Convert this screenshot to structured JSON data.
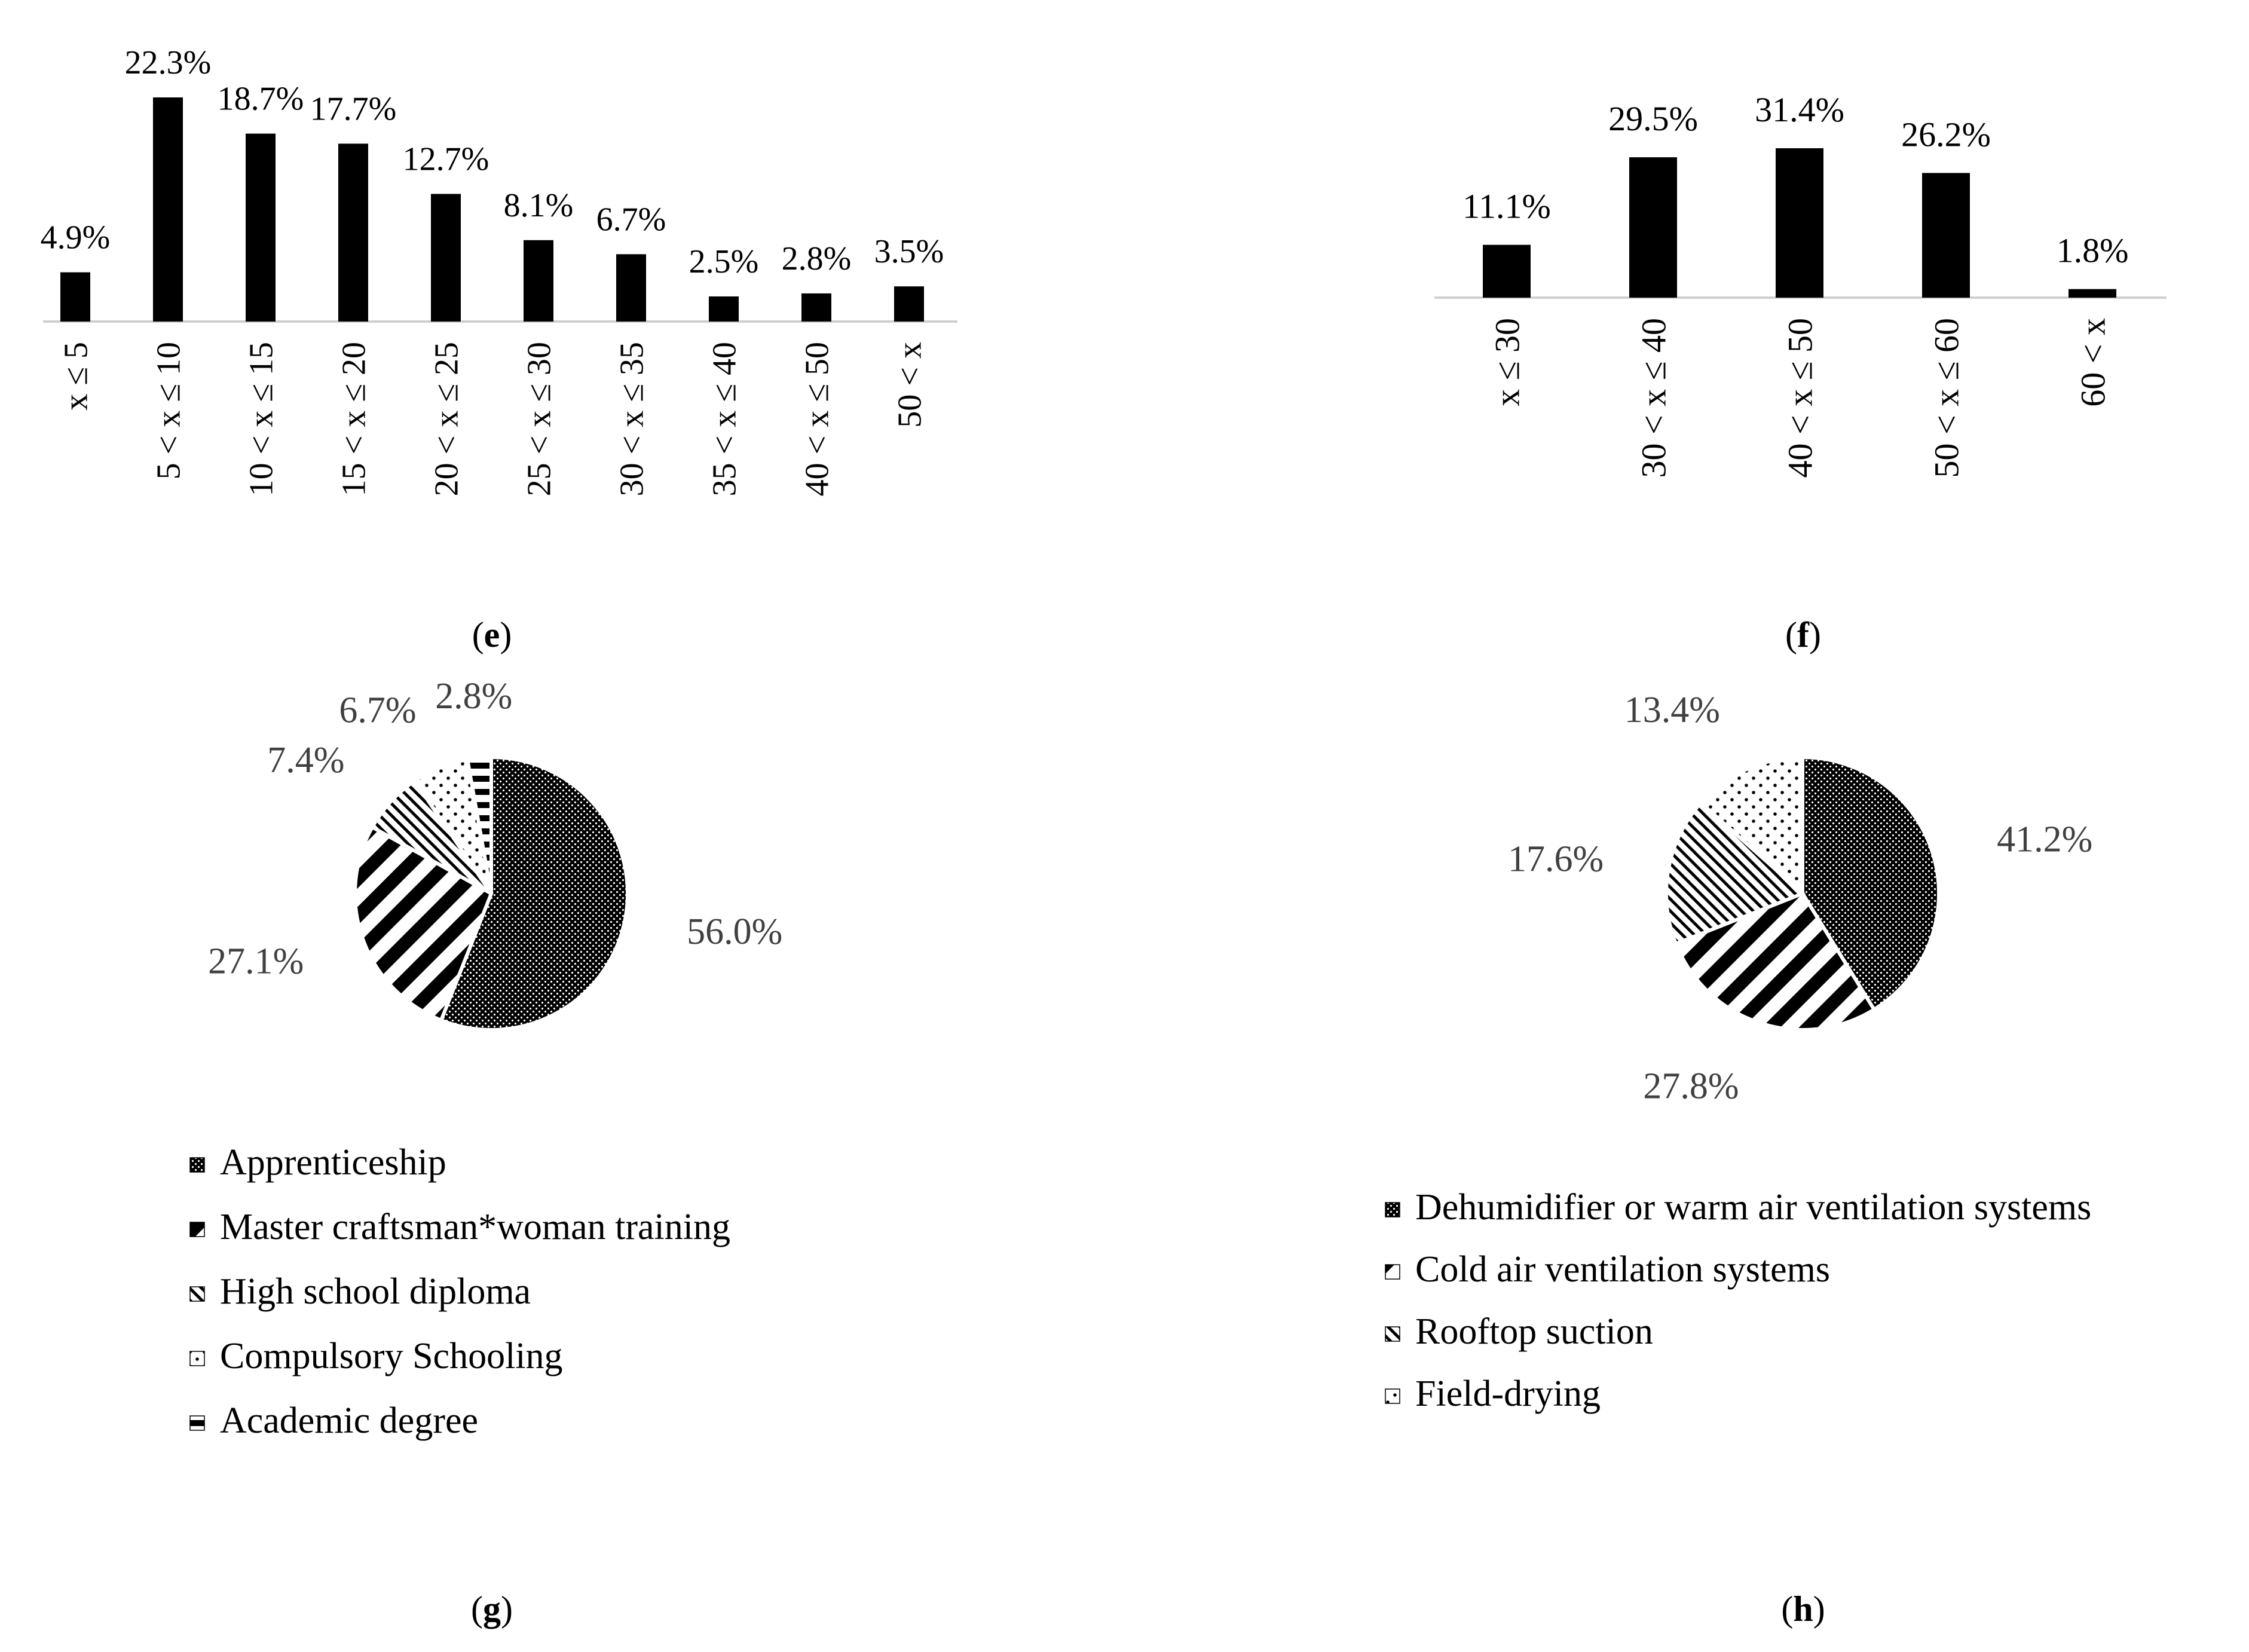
{
  "chart_data": [
    {
      "id": "e",
      "type": "bar",
      "caption": "e",
      "categories": [
        "x ≤ 5",
        "5 < x ≤ 10",
        "10 < x ≤ 15",
        "15 < x ≤ 20",
        "20 < x ≤ 25",
        "25 < x ≤ 30",
        "30 < x ≤ 35",
        "35 < x ≤ 40",
        "40 < x ≤ 50",
        "50 < x"
      ],
      "values": [
        4.9,
        22.3,
        18.7,
        17.7,
        12.7,
        8.1,
        6.7,
        2.5,
        2.8,
        3.5
      ],
      "value_labels": [
        "4.9%",
        "22.3%",
        "18.7%",
        "17.7%",
        "12.7%",
        "8.1%",
        "6.7%",
        "2.5%",
        "2.8%",
        "3.5%"
      ],
      "ylim": [
        0,
        22.3
      ],
      "xlabel": "",
      "ylabel": "",
      "grid": false,
      "bar_color": "#000000"
    },
    {
      "id": "f",
      "type": "bar",
      "caption": "f",
      "categories": [
        "x ≤ 30",
        "30 < x ≤ 40",
        "40 < x ≤ 50",
        "50 < x ≤ 60",
        "60 < x"
      ],
      "values": [
        11.1,
        29.5,
        31.4,
        26.2,
        1.8
      ],
      "value_labels": [
        "11.1%",
        "29.5%",
        "31.4%",
        "26.2%",
        "1.8%"
      ],
      "ylim": [
        0,
        31.4
      ],
      "xlabel": "",
      "ylabel": "",
      "grid": false,
      "bar_color": "#000000"
    },
    {
      "id": "g",
      "type": "pie",
      "caption": "g",
      "start_at_top": true,
      "slices": [
        {
          "label": "Apprenticeship",
          "value": 56.0,
          "value_label": "56.0%",
          "pattern": "dense-dots"
        },
        {
          "label": "Master craftsman*woman training",
          "value": 27.1,
          "value_label": "27.1%",
          "pattern": "wide-diagonal"
        },
        {
          "label": "High school diploma",
          "value": 7.4,
          "value_label": "7.4%",
          "pattern": "fine-diagonal"
        },
        {
          "label": "Compulsory Schooling",
          "value": 6.7,
          "value_label": "6.7%",
          "pattern": "sparse-dots"
        },
        {
          "label": "Academic degree",
          "value": 2.8,
          "value_label": "2.8%",
          "pattern": "dashes"
        }
      ]
    },
    {
      "id": "h",
      "type": "pie",
      "caption": "h",
      "start_at_top": true,
      "slices": [
        {
          "label": "Dehumidifier or warm air ventilation systems",
          "value": 41.2,
          "value_label": "41.2%",
          "pattern": "dense-dots"
        },
        {
          "label": "Cold air ventilation systems",
          "value": 27.8,
          "value_label": "27.8%",
          "pattern": "wide-diagonal"
        },
        {
          "label": "Rooftop suction",
          "value": 17.6,
          "value_label": "17.6%",
          "pattern": "fine-diagonal"
        },
        {
          "label": "Field-drying",
          "value": 13.4,
          "value_label": "13.4%",
          "pattern": "sparse-dots"
        }
      ]
    }
  ]
}
